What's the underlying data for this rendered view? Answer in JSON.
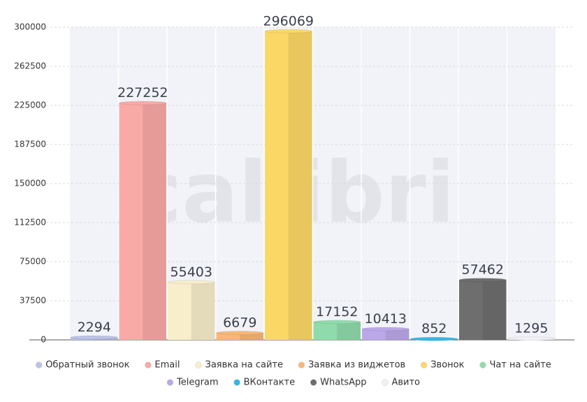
{
  "chart_data": {
    "type": "bar",
    "watermark": "callibri",
    "categories": [
      "Обратный звонок",
      "Email",
      "Заявка на сайте",
      "Заявка из виджетов",
      "Звонок",
      "Чат на сайте",
      "Telegram",
      "ВКонтакте",
      "WhatsApp",
      "Авито"
    ],
    "values": [
      2294,
      227252,
      55403,
      6679,
      296069,
      17152,
      10413,
      852,
      57462,
      1295
    ],
    "colors": [
      "#bcc3e8",
      "#f9aaa6",
      "#f8eecb",
      "#f9b878",
      "#fbd866",
      "#90dbab",
      "#bba8e8",
      "#38b6e2",
      "#6e6e6e",
      "#f1f1f4"
    ],
    "ylim": [
      0,
      300000
    ],
    "yticks": [
      0,
      37500,
      75000,
      112500,
      150000,
      187500,
      225000,
      262500,
      300000
    ],
    "grid": true
  }
}
